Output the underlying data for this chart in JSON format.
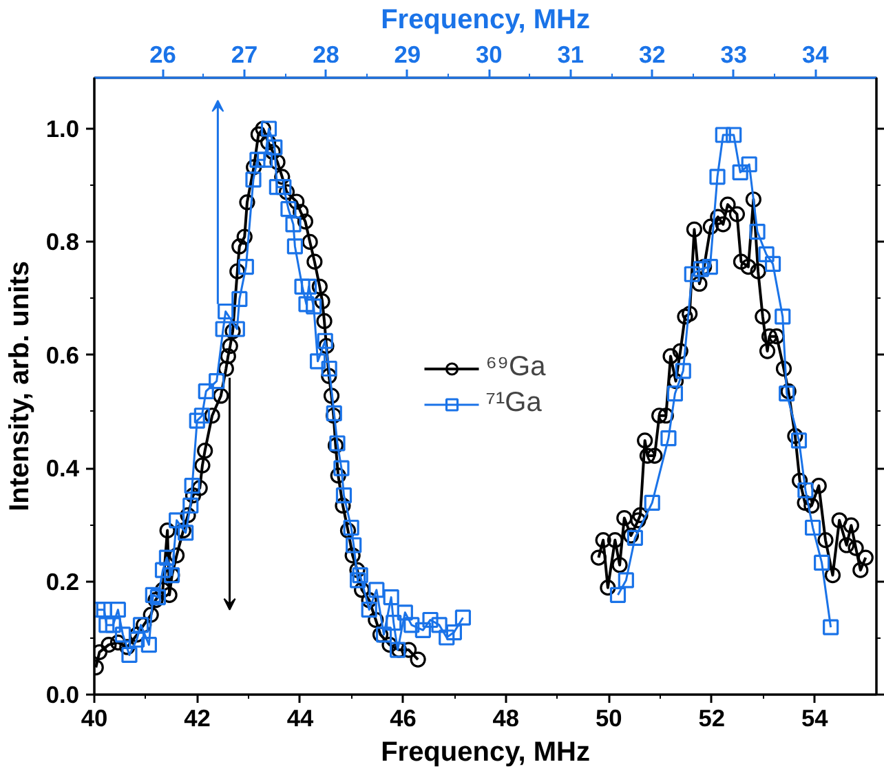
{
  "chart_data": {
    "type": "line",
    "xlabel": "Frequency, MHz",
    "x2label": "Frequency, MHz",
    "ylabel": "Intensity, arb. units",
    "xlim": [
      40,
      55.2
    ],
    "xticks": [
      40,
      42,
      44,
      46,
      48,
      50,
      52,
      54
    ],
    "x2lim": [
      25.16,
      34.75
    ],
    "x2ticks": [
      26,
      27,
      28,
      29,
      30,
      31,
      32,
      33,
      34
    ],
    "ylim": [
      0,
      1.09
    ],
    "yticks": [
      {
        "value": 0,
        "label": "0.0"
      },
      {
        "value": 0.2,
        "label": "0.2"
      },
      {
        "value": 0.4,
        "label": "0.4"
      },
      {
        "value": 0.6,
        "label": "0.6"
      },
      {
        "value": 0.8,
        "label": "0.8"
      },
      {
        "value": 1.0,
        "label": "1.0"
      }
    ],
    "grid": false,
    "legend": "center",
    "line_style": "solid",
    "series": [
      {
        "name": "⁶⁹Ga",
        "color": "#000000",
        "marker": "circle",
        "x": [
          40.03,
          40.1,
          40.28,
          40.46,
          40.64,
          40.83,
          40.96,
          41.1,
          41.19,
          41.33,
          41.42,
          41.46,
          41.51,
          41.6,
          41.73,
          41.82,
          41.92,
          42.05,
          42.1,
          42.15,
          42.29,
          42.46,
          42.56,
          42.6,
          42.64,
          42.69,
          42.78,
          42.82,
          42.92,
          42.97,
          43.1,
          43.19,
          43.28,
          43.38,
          43.47,
          43.56,
          43.65,
          43.74,
          43.93,
          44.01,
          44.1,
          44.19,
          44.28,
          44.38,
          44.43,
          44.47,
          44.51,
          44.56,
          44.61,
          44.65,
          44.69,
          44.74,
          44.83,
          44.93,
          45.02,
          45.11,
          45.2,
          45.34,
          45.47,
          45.56,
          45.74,
          45.92,
          46.11,
          46.29,
          48.0,
          49.8,
          49.89,
          49.98,
          50.12,
          50.21,
          50.3,
          50.43,
          50.57,
          50.61,
          50.7,
          50.75,
          50.89,
          50.98,
          51.11,
          51.2,
          51.3,
          51.39,
          51.48,
          51.57,
          51.66,
          51.76,
          51.85,
          51.98,
          52.12,
          52.22,
          52.31,
          52.49,
          52.57,
          52.71,
          52.81,
          52.9,
          52.99,
          53.08,
          53.12,
          53.26,
          53.4,
          53.49,
          53.62,
          53.71,
          53.81,
          53.94,
          54.08,
          54.21,
          54.35,
          54.48,
          54.62,
          54.71,
          54.8,
          54.89,
          54.99
        ],
        "values": [
          0.048,
          0.075,
          0.088,
          0.092,
          0.084,
          0.106,
          0.123,
          0.141,
          0.167,
          0.185,
          0.29,
          0.176,
          0.211,
          0.246,
          0.29,
          0.317,
          0.352,
          0.365,
          0.405,
          0.431,
          0.493,
          0.528,
          0.576,
          0.598,
          0.616,
          0.642,
          0.748,
          0.792,
          0.809,
          0.87,
          0.932,
          0.99,
          1.0,
          0.976,
          0.959,
          0.941,
          0.915,
          0.888,
          0.871,
          0.853,
          0.836,
          0.8,
          0.765,
          0.721,
          0.695,
          0.66,
          0.616,
          0.563,
          0.528,
          0.493,
          0.44,
          0.387,
          0.334,
          0.29,
          0.246,
          0.22,
          0.185,
          0.167,
          0.132,
          0.106,
          0.088,
          0.079,
          0.079,
          0.062,
          null,
          0.242,
          0.273,
          0.189,
          0.273,
          0.229,
          0.312,
          0.281,
          0.308,
          0.317,
          0.449,
          0.422,
          0.422,
          0.493,
          0.493,
          0.598,
          0.554,
          0.607,
          0.668,
          0.673,
          0.822,
          0.726,
          0.756,
          0.827,
          0.844,
          0.831,
          0.866,
          0.849,
          0.765,
          0.756,
          0.875,
          0.748,
          0.668,
          0.607,
          0.633,
          0.633,
          0.576,
          0.536,
          0.457,
          0.378,
          0.339,
          0.334,
          0.369,
          0.273,
          0.211,
          0.308,
          0.264,
          0.299,
          0.259,
          0.22,
          0.242
        ]
      },
      {
        "name": "⁷¹Ga",
        "color": "#1a73e8",
        "marker": "square",
        "axis": "x2",
        "x": [
          25.2,
          25.28,
          25.31,
          25.39,
          25.45,
          25.51,
          25.59,
          25.68,
          25.73,
          25.83,
          25.88,
          25.94,
          26.0,
          26.05,
          26.11,
          26.17,
          26.28,
          26.34,
          26.36,
          26.42,
          26.48,
          26.53,
          26.66,
          26.74,
          26.77,
          26.91,
          26.94,
          27.02,
          27.11,
          27.16,
          27.25,
          27.3,
          27.37,
          27.4,
          27.48,
          27.54,
          27.6,
          27.62,
          27.71,
          27.76,
          27.79,
          27.85,
          27.9,
          27.99,
          28.04,
          28.1,
          28.14,
          28.19,
          28.22,
          28.31,
          28.34,
          28.39,
          28.42,
          28.53,
          28.62,
          28.71,
          28.8,
          28.83,
          28.88,
          28.97,
          29.05,
          29.19,
          29.28,
          29.39,
          29.48,
          29.57,
          29.68,
          30.5,
          31.58,
          31.68,
          31.79,
          32.0,
          32.2,
          32.28,
          32.38,
          32.49,
          32.6,
          32.71,
          32.8,
          32.87,
          33.0,
          33.08,
          33.19,
          33.29,
          33.4,
          33.48,
          33.6,
          33.65,
          33.8,
          33.88,
          33.97,
          34.08,
          34.19
        ],
        "values": [
          0.15,
          0.15,
          0.123,
          0.123,
          0.15,
          0.106,
          0.07,
          0.097,
          0.123,
          0.088,
          0.176,
          0.172,
          0.22,
          0.242,
          0.211,
          0.308,
          0.286,
          0.334,
          0.369,
          0.484,
          0.493,
          0.536,
          0.554,
          0.646,
          0.677,
          0.646,
          0.699,
          0.756,
          0.91,
          0.945,
          0.945,
          1.0,
          0.967,
          0.897,
          0.897,
          0.858,
          0.831,
          0.792,
          0.721,
          0.69,
          0.721,
          0.686,
          0.589,
          0.625,
          0.576,
          0.497,
          0.444,
          0.4,
          0.352,
          0.295,
          0.264,
          0.202,
          0.211,
          0.15,
          0.185,
          0.106,
          0.172,
          0.127,
          0.079,
          0.145,
          0.123,
          0.114,
          0.132,
          0.123,
          0.101,
          0.11,
          0.136,
          null,
          0.176,
          0.202,
          0.277,
          0.339,
          0.453,
          0.532,
          0.572,
          0.743,
          0.752,
          0.756,
          0.915,
          0.989,
          0.989,
          0.923,
          0.937,
          0.818,
          0.778,
          0.761,
          0.668,
          0.532,
          0.449,
          0.361,
          0.295,
          0.233,
          0.119
        ]
      }
    ]
  }
}
